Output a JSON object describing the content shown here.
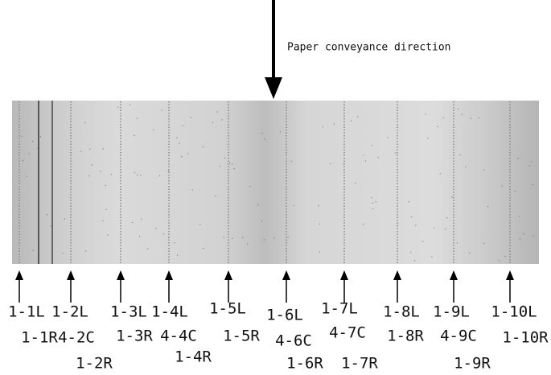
{
  "caption": "Paper conveyance direction",
  "markers": [
    {
      "labels": [
        "1-1L",
        "1-1R"
      ]
    },
    {
      "labels": [
        "1-2L",
        "4-2C",
        "1-2R"
      ]
    },
    {
      "labels": [
        "1-3L",
        "1-3R"
      ]
    },
    {
      "labels": [
        "1-4L",
        "4-4C",
        "1-4R"
      ]
    },
    {
      "labels": [
        "1-5L",
        "1-5R"
      ]
    },
    {
      "labels": [
        "1-6L",
        "4-6C",
        "1-6R"
      ]
    },
    {
      "labels": [
        "1-7L",
        "4-7C",
        "1-7R"
      ]
    },
    {
      "labels": [
        "1-8L",
        "1-8R"
      ]
    },
    {
      "labels": [
        "1-9L",
        "4-9C",
        "1-9R"
      ]
    },
    {
      "labels": [
        "1-10L",
        "1-10R"
      ]
    }
  ]
}
